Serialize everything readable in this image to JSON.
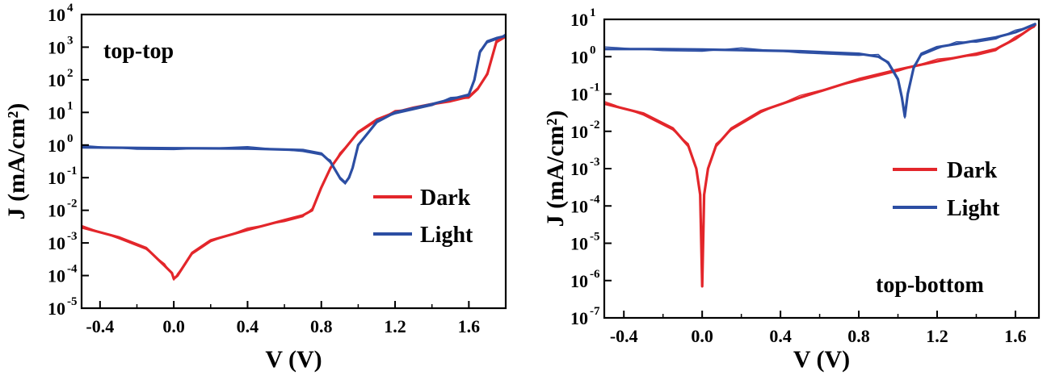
{
  "chart_data": [
    {
      "type": "line",
      "annotation": "top-top",
      "xlabel": "V (V)",
      "ylabel": "J (mA/cm²)",
      "xlim": [
        -0.5,
        1.8
      ],
      "ylim": [
        1e-05,
        10000.0
      ],
      "yscale": "log",
      "xticks": [
        "-0.4",
        "0.0",
        "0.4",
        "0.8",
        "1.2",
        "1.6"
      ],
      "xtick_values": [
        -0.4,
        0.0,
        0.4,
        0.8,
        1.2,
        1.6
      ],
      "yticks": [
        {
          "base": "10",
          "exp": "-5"
        },
        {
          "base": "10",
          "exp": "-4"
        },
        {
          "base": "10",
          "exp": "-3"
        },
        {
          "base": "10",
          "exp": "-2"
        },
        {
          "base": "10",
          "exp": "-1"
        },
        {
          "base": "10",
          "exp": "0"
        },
        {
          "base": "10",
          "exp": "1"
        },
        {
          "base": "10",
          "exp": "2"
        },
        {
          "base": "10",
          "exp": "3"
        },
        {
          "base": "10",
          "exp": "4"
        }
      ],
      "legend_position": "center-right",
      "series": [
        {
          "name": "Dark",
          "color": "#e3262b",
          "x": [
            -0.5,
            -0.3,
            -0.15,
            -0.05,
            -0.01,
            0.0,
            0.02,
            0.1,
            0.2,
            0.4,
            0.6,
            0.7,
            0.75,
            0.8,
            0.85,
            0.9,
            1.0,
            1.1,
            1.2,
            1.3,
            1.4,
            1.5,
            1.6,
            1.65,
            1.7,
            1.75,
            1.8
          ],
          "y": [
            0.003,
            0.0015,
            0.0007,
            0.0002,
            0.00012,
            8e-05,
            0.0001,
            0.0005,
            0.0012,
            0.0025,
            0.005,
            0.007,
            0.01,
            0.05,
            0.2,
            0.5,
            2.5,
            6,
            10,
            14,
            18,
            22,
            30,
            55,
            150,
            1500,
            2200
          ]
        },
        {
          "name": "Light",
          "color": "#2c4ea3",
          "x": [
            -0.5,
            -0.2,
            0.0,
            0.4,
            0.7,
            0.8,
            0.85,
            0.9,
            0.93,
            0.95,
            0.97,
            1.0,
            1.1,
            1.2,
            1.4,
            1.5,
            1.6,
            1.63,
            1.66,
            1.7,
            1.75,
            1.8
          ],
          "y": [
            0.85,
            0.82,
            0.8,
            0.78,
            0.7,
            0.55,
            0.3,
            0.1,
            0.07,
            0.1,
            0.2,
            1.0,
            5,
            10,
            18,
            25,
            35,
            100,
            700,
            1500,
            1900,
            2200
          ]
        }
      ]
    },
    {
      "type": "line",
      "annotation": "top-bottom",
      "xlabel": "V (V)",
      "ylabel": "J (mA/cm²)",
      "xlim": [
        -0.5,
        1.72
      ],
      "ylim": [
        1e-07,
        10
      ],
      "yscale": "log",
      "xticks": [
        "-0.4",
        "0.0",
        "0.4",
        "0.8",
        "1.2",
        "1.6"
      ],
      "xtick_values": [
        -0.4,
        0.0,
        0.4,
        0.8,
        1.2,
        1.6
      ],
      "yticks": [
        {
          "base": "10",
          "exp": "-7"
        },
        {
          "base": "10",
          "exp": "-6"
        },
        {
          "base": "10",
          "exp": "-5"
        },
        {
          "base": "10",
          "exp": "-4"
        },
        {
          "base": "10",
          "exp": "-3"
        },
        {
          "base": "10",
          "exp": "-2"
        },
        {
          "base": "10",
          "exp": "-1"
        },
        {
          "base": "10",
          "exp": "0"
        },
        {
          "base": "10",
          "exp": "1"
        }
      ],
      "legend_position": "center-right",
      "series": [
        {
          "name": "Dark",
          "color": "#e3262b",
          "x": [
            -0.5,
            -0.3,
            -0.15,
            -0.07,
            -0.03,
            -0.01,
            0.0,
            0.01,
            0.03,
            0.07,
            0.15,
            0.3,
            0.5,
            0.8,
            1.0,
            1.2,
            1.4,
            1.5,
            1.6,
            1.7
          ],
          "y": [
            0.055,
            0.03,
            0.012,
            0.004,
            0.001,
            0.0002,
            7e-07,
            0.0002,
            0.001,
            0.004,
            0.012,
            0.035,
            0.08,
            0.25,
            0.45,
            0.75,
            1.2,
            1.6,
            3,
            7
          ]
        },
        {
          "name": "Light",
          "color": "#2c4ea3",
          "x": [
            -0.5,
            -0.2,
            0.0,
            0.2,
            0.5,
            0.8,
            0.9,
            0.95,
            1.0,
            1.02,
            1.035,
            1.05,
            1.08,
            1.12,
            1.2,
            1.3,
            1.4,
            1.5,
            1.6,
            1.7
          ],
          "y": [
            1.6,
            1.6,
            1.55,
            1.5,
            1.4,
            1.2,
            1.0,
            0.7,
            0.25,
            0.08,
            0.025,
            0.1,
            0.5,
            1.2,
            1.8,
            2.2,
            2.7,
            3.3,
            4.5,
            7.5
          ]
        }
      ]
    }
  ]
}
